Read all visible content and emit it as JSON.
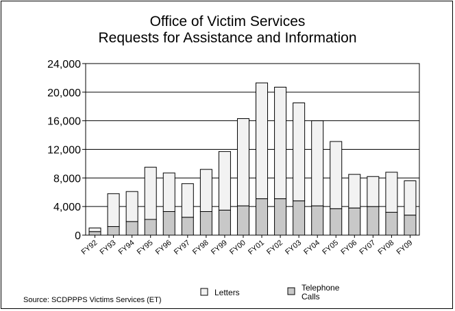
{
  "chart_data": {
    "type": "bar",
    "stacked": true,
    "title": [
      "Office of Victim Services",
      "Requests for Assistance and Information"
    ],
    "categories": [
      "FY92",
      "FY93",
      "FY94",
      "FY95",
      "FY96",
      "FY97",
      "FY98",
      "FY99",
      "FY00",
      "FY01",
      "FY02",
      "FY03",
      "FY04",
      "FY05",
      "FY06",
      "FY07",
      "FY08",
      "FY09"
    ],
    "series": [
      {
        "name": "Telephone Calls",
        "color": "#c8c8c8",
        "values": [
          500,
          1200,
          1900,
          2200,
          3300,
          2500,
          3300,
          3500,
          4100,
          5100,
          5100,
          4800,
          4100,
          3700,
          3800,
          4000,
          3200,
          2800
        ]
      },
      {
        "name": "Letters",
        "color": "#f2f2f2",
        "values": [
          500,
          4600,
          4200,
          7300,
          5400,
          4700,
          5900,
          8200,
          12200,
          16200,
          15600,
          13700,
          11900,
          9400,
          4700,
          4200,
          5600,
          4800
        ]
      }
    ],
    "totals": [
      1000,
      5800,
      6100,
      9500,
      8700,
      7200,
      9200,
      11700,
      16300,
      21300,
      20700,
      18500,
      16000,
      13100,
      8500,
      8200,
      8800,
      7600
    ],
    "ylim": [
      0,
      24000
    ],
    "yticks": [
      0,
      4000,
      8000,
      12000,
      16000,
      20000,
      24000
    ],
    "ytick_labels": [
      "0",
      "4,000",
      "8,000",
      "12,000",
      "16,000",
      "20,000",
      "24,000"
    ],
    "grid": true,
    "legend": {
      "placement": "bottom",
      "entries": [
        {
          "label": [
            "Letters"
          ],
          "color": "#f2f2f2"
        },
        {
          "label": [
            "Telephone",
            "Calls"
          ],
          "color": "#c8c8c8"
        }
      ]
    },
    "source": "Source:  SCDPPPS Victims Services (ET)"
  }
}
